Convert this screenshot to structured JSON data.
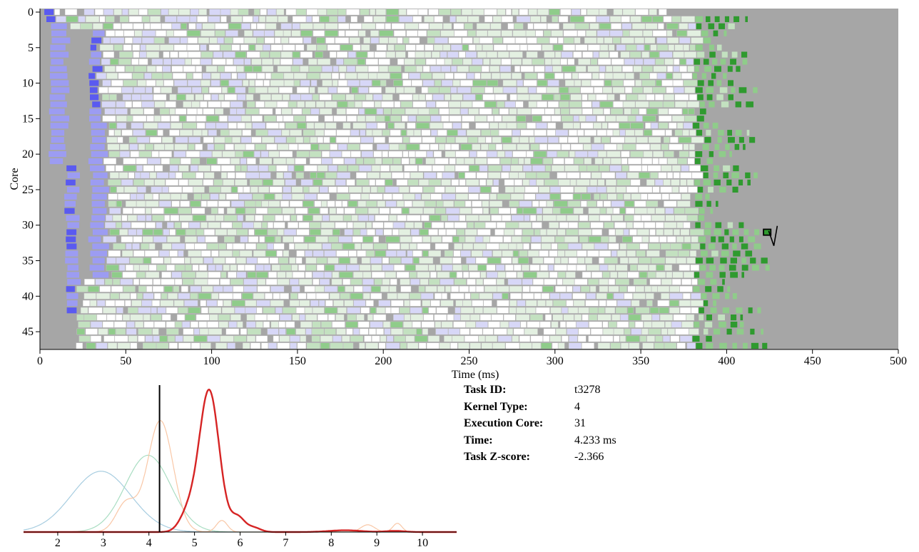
{
  "colors": {
    "background": "#a6a6a6",
    "task_white": "#ffffff",
    "task_border": "#c8c8c8",
    "blue_light": "#9c9cf2",
    "blue_mid": "#5a5af0",
    "blue_dark": "#1f1fe6",
    "lavender": "#d7d7f7",
    "green_pale": "#e3f0e1",
    "green_light": "#c3e1c0",
    "green_mid": "#8fcc8a",
    "green_dark": "#2f9a2f",
    "kde_red": "#d62424",
    "kde_peach": "#f9c7a6",
    "kde_seafoam": "#a9ddc2",
    "kde_blue": "#a7cde0"
  },
  "chart_data": [
    {
      "type": "gantt",
      "xlabel": "Time (ms)",
      "ylabel": "Core",
      "xlim": [
        0,
        500
      ],
      "ylim": [
        0,
        47
      ],
      "x_ticks": [
        0,
        50,
        100,
        150,
        200,
        250,
        300,
        350,
        400,
        450,
        500
      ],
      "y_ticks": [
        0,
        5,
        10,
        15,
        20,
        25,
        30,
        35,
        40,
        45
      ],
      "core_count": 48,
      "core_end_ms": [
        365,
        412,
        406,
        400,
        393,
        400,
        412,
        412,
        408,
        400,
        405,
        420,
        407,
        418,
        390,
        390,
        395,
        412,
        418,
        410,
        402,
        392,
        410,
        418,
        414,
        408,
        390,
        394,
        392,
        388,
        410,
        420,
        418,
        420,
        416,
        424,
        425,
        410,
        398,
        402,
        406,
        394,
        420,
        408,
        410,
        420,
        392,
        425
      ],
      "highlighted_task": {
        "core": 31,
        "start_ms": 421.5,
        "duration_ms": 4.233
      }
    },
    {
      "type": "line",
      "x_ticks": [
        2,
        3,
        4,
        5,
        6,
        7,
        8,
        9,
        10
      ],
      "xlim": [
        1.25,
        10.75
      ],
      "marker_x": 4.233,
      "series": [
        {
          "color_key": "kde_blue",
          "components": [
            [
              2.95,
              0.65,
              0.42
            ]
          ]
        },
        {
          "color_key": "kde_seafoam",
          "components": [
            [
              3.98,
              0.5,
              0.53
            ]
          ]
        },
        {
          "color_key": "kde_peach",
          "components": [
            [
              4.25,
              0.28,
              0.77
            ],
            [
              3.5,
              0.22,
              0.2
            ],
            [
              5.6,
              0.12,
              0.08
            ],
            [
              8.8,
              0.15,
              0.05
            ],
            [
              9.45,
              0.1,
              0.06
            ]
          ]
        },
        {
          "color_key": "kde_red",
          "components": [
            [
              5.32,
              0.22,
              0.98
            ],
            [
              4.85,
              0.18,
              0.12
            ],
            [
              5.95,
              0.15,
              0.1
            ],
            [
              6.3,
              0.15,
              0.03
            ],
            [
              8.3,
              0.35,
              0.012
            ],
            [
              9.4,
              0.2,
              0.008
            ]
          ]
        }
      ]
    }
  ],
  "task_info": {
    "rows": [
      {
        "label": "Task ID:",
        "value": "t3278"
      },
      {
        "label": "Kernel Type:",
        "value": "4"
      },
      {
        "label": "Execution Core:",
        "value": "31"
      },
      {
        "label": "Time:",
        "value": "4.233 ms"
      },
      {
        "label": "Task Z-score:",
        "value": "-2.366"
      }
    ]
  }
}
